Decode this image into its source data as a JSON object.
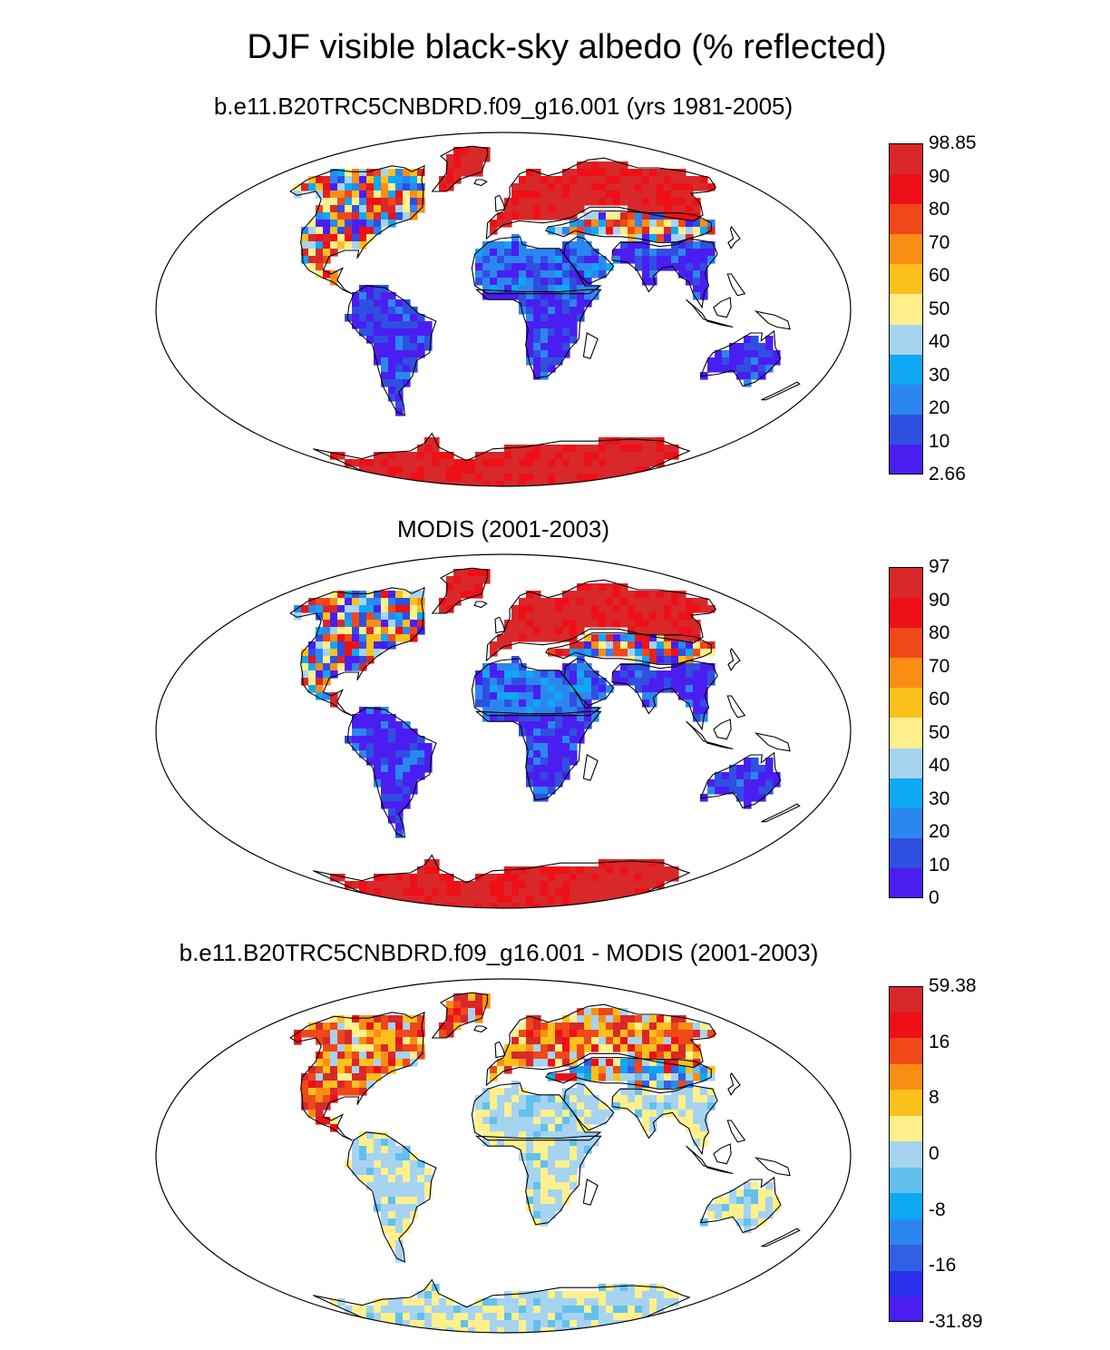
{
  "title": "DJF visible black-sky albedo (% reflected)",
  "panels": [
    {
      "id": "model",
      "title": "b.e11.B20TRC5CNBDRD.f09_g16.001 (yrs 1981-2005)",
      "colorbar": {
        "colors": [
          "#4a1ef0",
          "#2f4fe0",
          "#2c86f0",
          "#0ea8f4",
          "#a6d3f0",
          "#fff08c",
          "#fcc01c",
          "#fa8e14",
          "#f04818",
          "#ee1016",
          "#d8282a"
        ],
        "labels": [
          "2.66",
          "10",
          "20",
          "30",
          "40",
          "50",
          "60",
          "70",
          "80",
          "90",
          "98.85"
        ]
      },
      "regions": {
        "north_america": "mixed",
        "greenland": "high",
        "south_america": "low",
        "africa_sahara": "low-mid",
        "africa_south": "low",
        "eurasia_north": "high",
        "eurasia_central": "mixed",
        "south_asia": "low",
        "australia": "low",
        "antarctica": "high"
      }
    },
    {
      "id": "modis",
      "title": "MODIS (2001-2003)",
      "colorbar": {
        "colors": [
          "#4a1ef0",
          "#2f4fe0",
          "#2c86f0",
          "#0ea8f4",
          "#a6d3f0",
          "#fff08c",
          "#fcc01c",
          "#fa8e14",
          "#f04818",
          "#ee1016",
          "#d8282a"
        ],
        "labels": [
          "0",
          "10",
          "20",
          "30",
          "40",
          "50",
          "60",
          "70",
          "80",
          "90",
          "97"
        ]
      },
      "regions": {
        "north_america": "mixed",
        "greenland": "high",
        "south_america": "low",
        "africa_sahara": "low-mid",
        "africa_south": "low",
        "eurasia_north": "high",
        "eurasia_central": "mixed",
        "south_asia": "low",
        "australia": "low",
        "antarctica": "high"
      }
    },
    {
      "id": "diff",
      "title": "b.e11.B20TRC5CNBDRD.f09_g16.001 - MODIS (2001-2003)",
      "colorbar": {
        "colors": [
          "#4a1ef0",
          "#2a30ec",
          "#3060e4",
          "#2c86f0",
          "#0ea8f4",
          "#62c0ee",
          "#a6d3f0",
          "#fff08c",
          "#fcc01c",
          "#fa8e14",
          "#f04818",
          "#ee1016",
          "#d8282a"
        ],
        "labels": [
          "-31.89",
          "",
          "-16",
          "",
          "-8",
          "",
          "0",
          "",
          "8",
          "",
          "16",
          "",
          "59.38"
        ]
      },
      "regions": {
        "north_america": "diff-pos",
        "greenland": "diff-pos",
        "south_america": "diff-zero",
        "africa_sahara": "diff-zero",
        "africa_south": "diff-zero",
        "eurasia_north": "diff-pos",
        "eurasia_central": "diff-neg",
        "south_asia": "diff-zero",
        "australia": "diff-zero",
        "antarctica": "diff-zero"
      }
    }
  ]
}
